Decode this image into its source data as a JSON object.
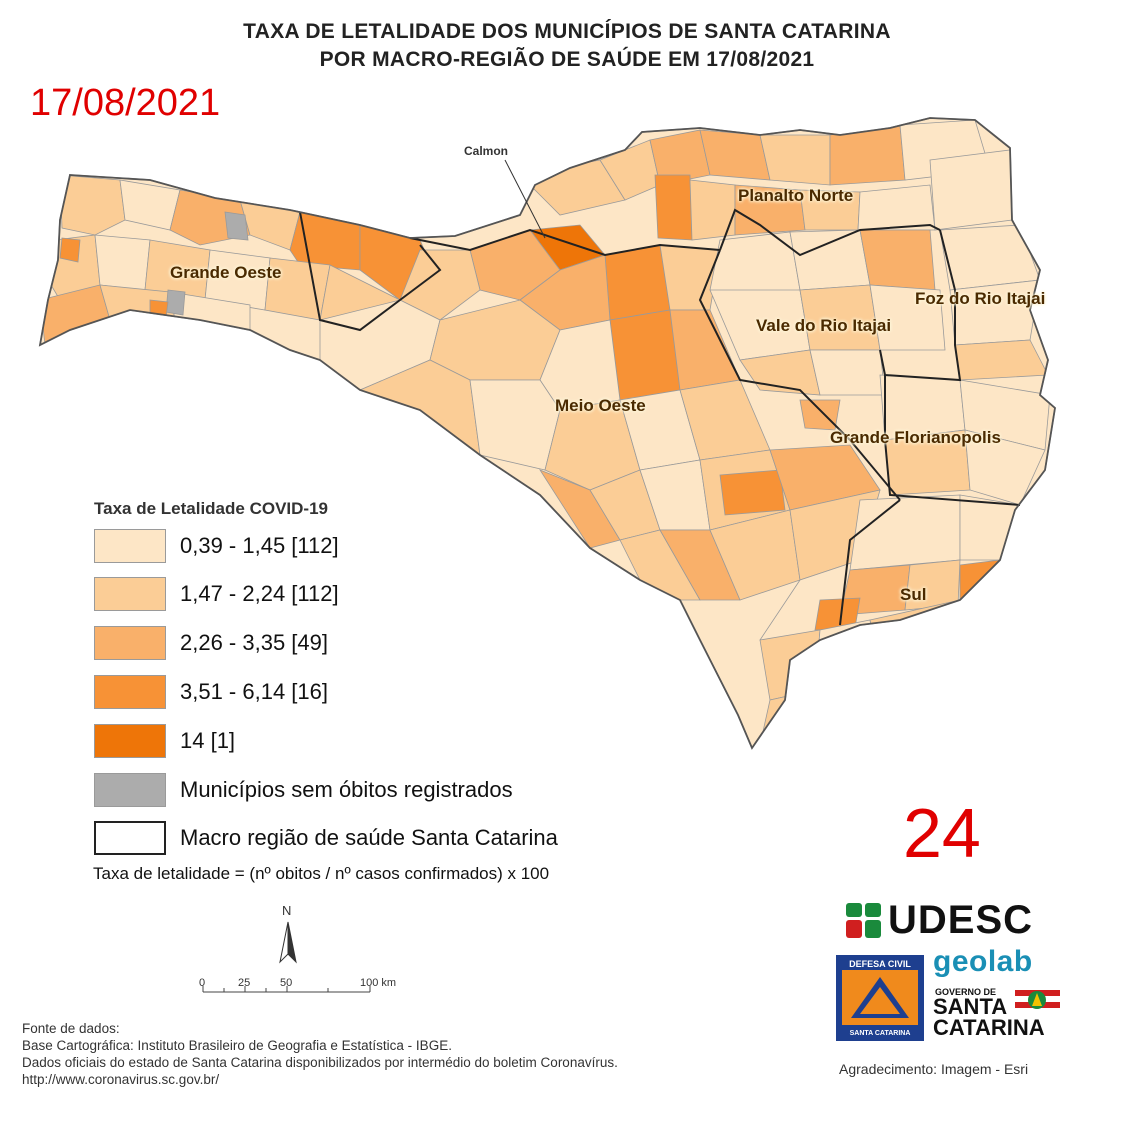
{
  "title": {
    "line1": "TAXA DE LETALIDADE DOS MUNICÍPIOS DE SANTA CATARINA",
    "line2": "POR MACRO-REGIÃO DE SAÚDE EM 17/08/2021"
  },
  "date_label": "17/08/2021",
  "big_number": "24",
  "map": {
    "callout": "Calmon",
    "regions": [
      {
        "name": "Planalto Norte"
      },
      {
        "name": "Grande Oeste"
      },
      {
        "name": "Foz do Rio Itajai"
      },
      {
        "name": "Vale do Rio Itajai"
      },
      {
        "name": "Meio Oeste"
      },
      {
        "name": "Grande Florianopolis"
      },
      {
        "name": "Sul"
      }
    ]
  },
  "legend": {
    "title": "Taxa de Letalidade COVID-19",
    "items": [
      {
        "label": "0,39 - 1,45 [112]",
        "color": "#fde6c6"
      },
      {
        "label": "1,47 - 2,24 [112]",
        "color": "#fbcd96"
      },
      {
        "label": "2,26 - 3,35 [49]",
        "color": "#f9b06a"
      },
      {
        "label": "3,51 - 6,14 [16]",
        "color": "#f79236"
      },
      {
        "label": "14 [1]",
        "color": "#ee7508"
      },
      {
        "label": "Municípios sem óbitos registrados",
        "color": "#acacac"
      },
      {
        "label": "Macro região de saúde Santa Catarina",
        "color": "#ffffff"
      }
    ],
    "formula": "Taxa de letalidade = (nº obitos / nº casos confirmados) x 100"
  },
  "north_arrow": "N",
  "scale_bar": {
    "ticks": [
      "0",
      "25",
      "50",
      "100 km"
    ]
  },
  "source": {
    "line1": "Fonte de dados:",
    "line2": "Base Cartográfica: Instituto Brasileiro de Geografia e Estatística - IBGE.",
    "line3": "Dados oficiais do estado de Santa Catarina disponibilizados por intermédio do boletim Coronavírus.",
    "line4": "http://www.coronavirus.sc.gov.br/"
  },
  "logos": {
    "udesc": "UDESC",
    "geolab": "geolab",
    "defesa_top": "DEFESA CIVIL",
    "defesa_bottom": "SANTA CATARINA",
    "gov_small": "GOVERNO DE",
    "gov_big1": "SANTA",
    "gov_big2": "CATARINA"
  },
  "acknowledgement": "Agradecimento: Imagem - Esri"
}
